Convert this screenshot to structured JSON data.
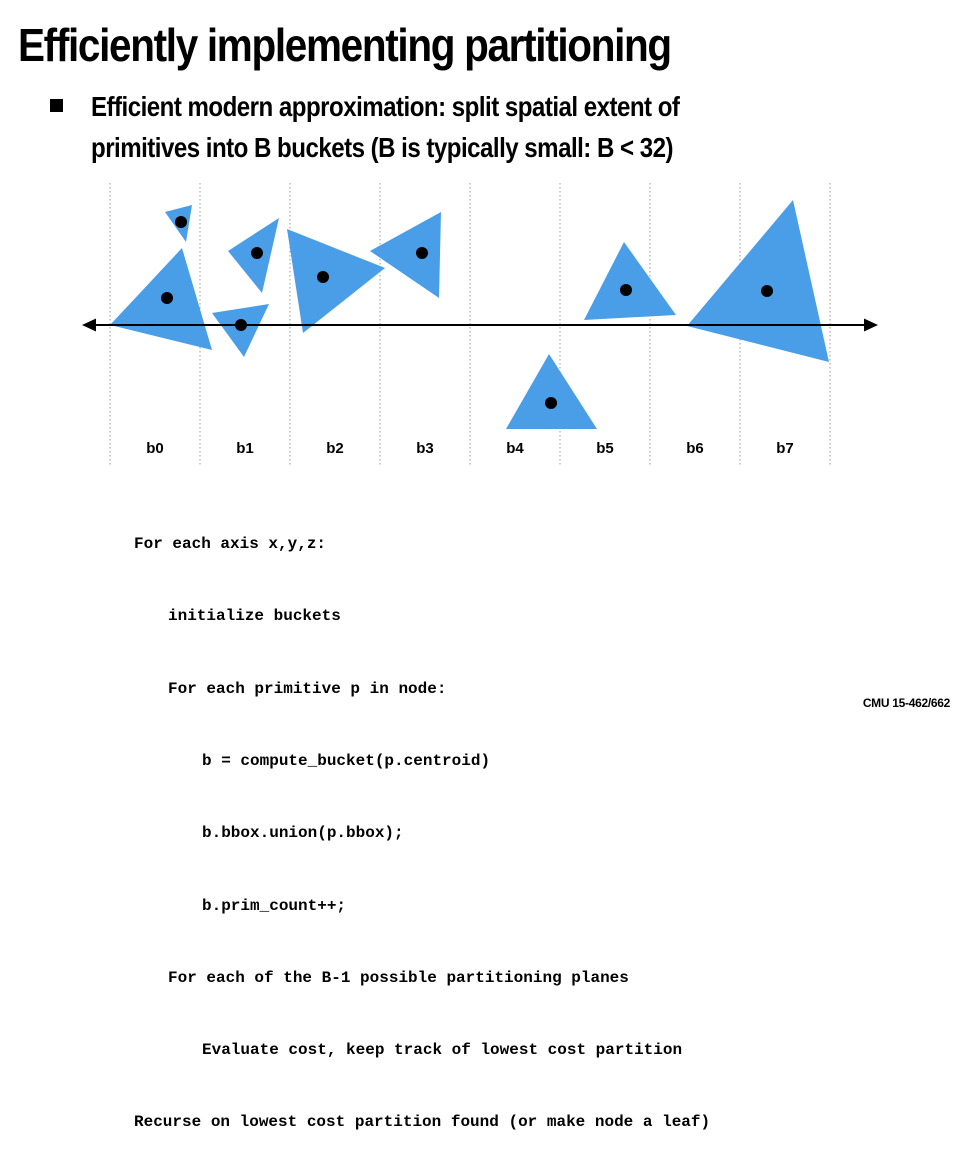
{
  "slide": {
    "title": "Efficiently implementing partitioning",
    "bullet": "Efficient modern approximation: split spatial extent of primitives into B buckets (B is typically small: B < 32)",
    "footer": "CMU 15-462/662"
  },
  "diagram": {
    "buckets": [
      "b0",
      "b1",
      "b2",
      "b3",
      "b4",
      "b5",
      "b6",
      "b7"
    ],
    "primitive_color": "#4a9ee8",
    "centroid_color": "#000000",
    "axis_color": "#000000",
    "divider_color": "#999999"
  },
  "code": {
    "lines": [
      {
        "indent": 0,
        "text": "For each axis x,y,z:"
      },
      {
        "indent": 1,
        "text": "initialize buckets"
      },
      {
        "indent": 1,
        "text": "For each primitive p in node:"
      },
      {
        "indent": 2,
        "text": "b = compute_bucket(p.centroid)"
      },
      {
        "indent": 2,
        "text": "b.bbox.union(p.bbox);"
      },
      {
        "indent": 2,
        "text": "b.prim_count++;"
      },
      {
        "indent": 1,
        "text": "For each of the B-1 possible partitioning planes"
      },
      {
        "indent": 2,
        "text": "Evaluate cost, keep track of lowest cost partition"
      },
      {
        "indent": 0,
        "text": "Recurse on lowest cost partition found (or make node a leaf)"
      }
    ]
  }
}
